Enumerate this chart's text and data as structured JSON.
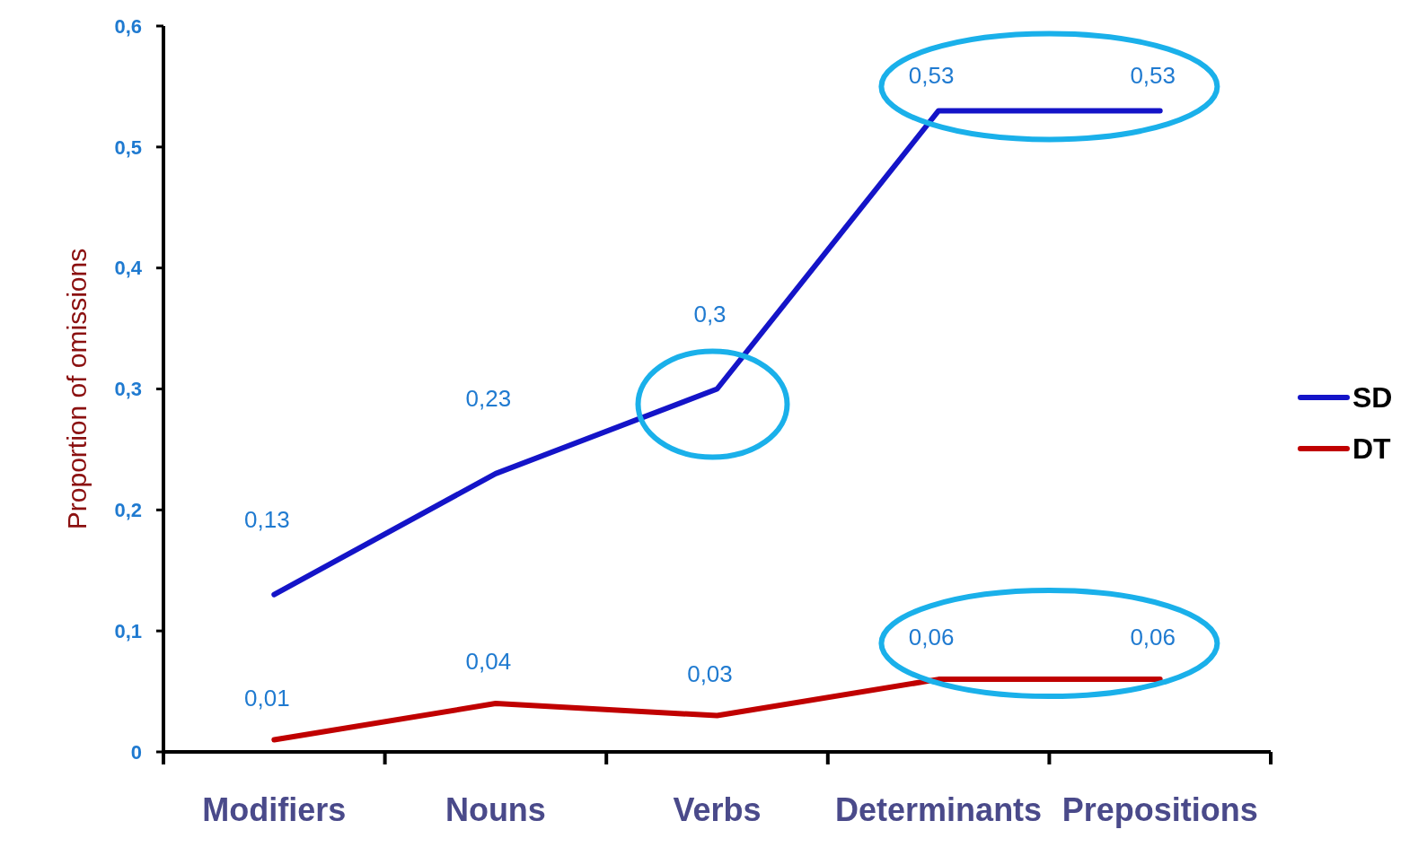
{
  "chart_data": {
    "type": "line",
    "ylabel": "Proportion of omissions",
    "categories": [
      "Modifiers",
      "Nouns",
      "Verbs",
      "Determinants",
      "Prepositions"
    ],
    "series": [
      {
        "name": "SD",
        "color": "#1414c8",
        "values": [
          0.13,
          0.23,
          0.3,
          0.53,
          0.53
        ],
        "value_labels": [
          "0,13",
          "0,23",
          "0,3",
          "0,53",
          "0,53"
        ]
      },
      {
        "name": "DT",
        "color": "#c00000",
        "values": [
          0.01,
          0.04,
          0.03,
          0.06,
          0.06
        ],
        "value_labels": [
          "0,01",
          "0,04",
          "0,03",
          "0,06",
          "0,06"
        ]
      }
    ],
    "ylim": [
      0,
      0.6
    ],
    "yticks": [
      {
        "value": 0,
        "label": "0"
      },
      {
        "value": 0.1,
        "label": "0,1"
      },
      {
        "value": 0.2,
        "label": "0,2"
      },
      {
        "value": 0.3,
        "label": "0,3"
      },
      {
        "value": 0.4,
        "label": "0,4"
      },
      {
        "value": 0.5,
        "label": "0,5"
      },
      {
        "value": 0.6,
        "label": "0,6"
      }
    ],
    "grid": false,
    "legend": "right",
    "marker": "none",
    "line_style": "solid"
  }
}
